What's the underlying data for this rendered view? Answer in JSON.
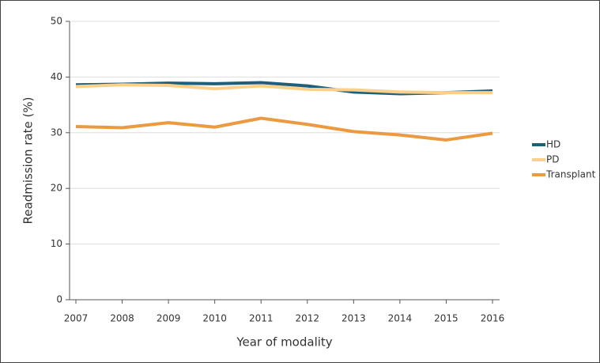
{
  "chart_data": {
    "type": "line",
    "x": [
      2007,
      2008,
      2009,
      2010,
      2011,
      2012,
      2013,
      2014,
      2015,
      2016
    ],
    "xlim": [
      2007,
      2016
    ],
    "xticks": [
      2007,
      2008,
      2009,
      2010,
      2011,
      2012,
      2013,
      2014,
      2015,
      2016
    ],
    "ylim": [
      0,
      50
    ],
    "yticks": [
      0,
      10,
      20,
      30,
      40,
      50
    ],
    "grid": true,
    "xlabel": "Year of modality",
    "ylabel": "Readmission rate (%)",
    "legend": "right",
    "series": [
      {
        "name": "HD",
        "color": "#1f5f7a",
        "values": [
          38.6,
          38.7,
          38.9,
          38.8,
          39.0,
          38.4,
          37.3,
          37.0,
          37.2,
          37.5
        ]
      },
      {
        "name": "PD",
        "color": "#fdd08a",
        "values": [
          38.3,
          38.6,
          38.5,
          37.9,
          38.4,
          37.8,
          37.7,
          37.3,
          37.2,
          37.2
        ]
      },
      {
        "name": "Transplant",
        "color": "#ec9a3f",
        "values": [
          31.1,
          30.9,
          31.8,
          31.0,
          32.6,
          31.5,
          30.2,
          29.6,
          28.7,
          29.9
        ]
      }
    ]
  }
}
